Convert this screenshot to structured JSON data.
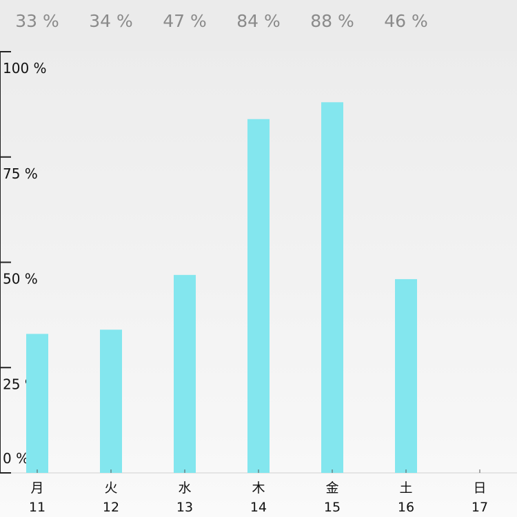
{
  "top_values": [
    "33 %",
    "34 %",
    "47 %",
    "84 %",
    "88 %",
    "46 %"
  ],
  "chart_data": {
    "type": "bar",
    "categories": [
      "月",
      "火",
      "水",
      "木",
      "金",
      "土",
      "日"
    ],
    "dates": [
      "11",
      "12",
      "13",
      "14",
      "15",
      "16",
      "17"
    ],
    "values": [
      33,
      34,
      47,
      84,
      88,
      46,
      null
    ],
    "ylim": [
      0,
      100
    ],
    "yticks": [
      "100 %",
      "75 %",
      "50 %",
      "25 %",
      "0 %"
    ],
    "colors": {
      "bar": "#83e6ee",
      "axis": "#222222",
      "top_value": "#8a8a8a"
    }
  }
}
